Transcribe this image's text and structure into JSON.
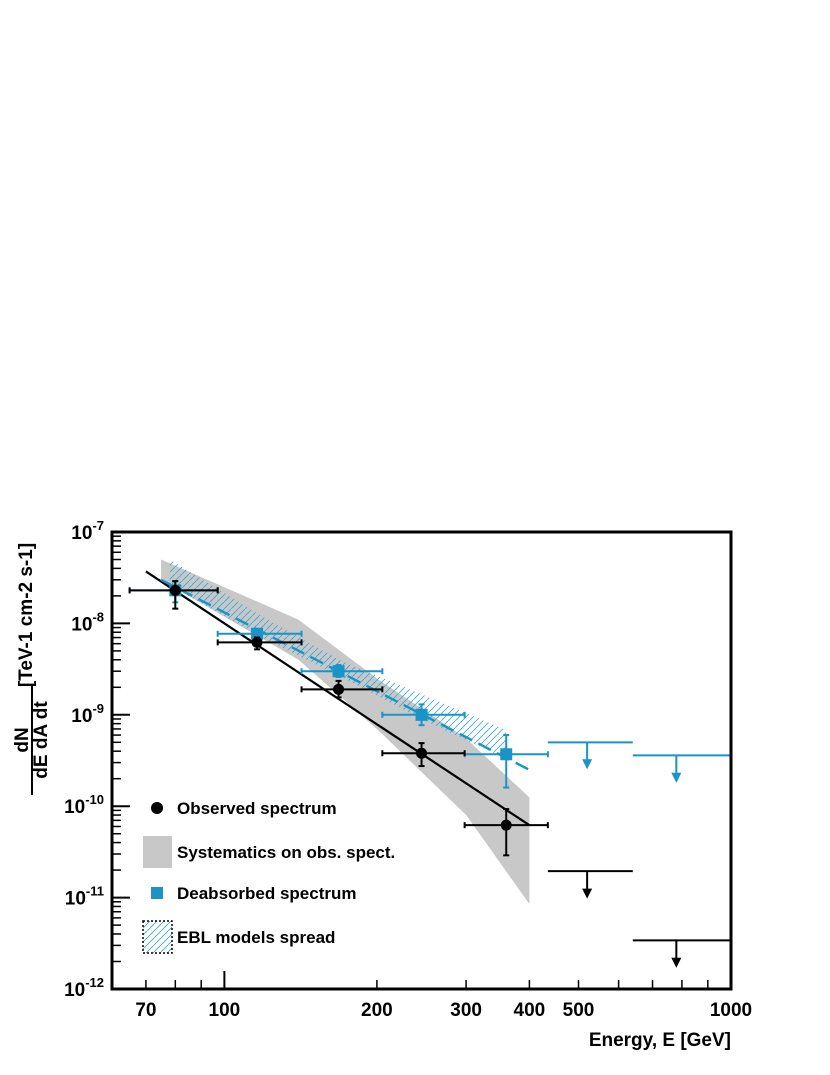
{
  "chart_data": {
    "type": "scatter",
    "title": "",
    "xlabel": "Energy, E [GeV]",
    "ylabel": {
      "numerator": "dN",
      "denominator": "dE dA dt",
      "units": "[TeV-1 cm-2 s-1]"
    },
    "x_scale": "log",
    "y_scale": "log",
    "xlim": [
      60,
      1000
    ],
    "ylim": [
      1e-12,
      1e-07
    ],
    "x_ticks": [
      70,
      100,
      200,
      300,
      400,
      500,
      1000
    ],
    "x_tick_labels": [
      "70",
      "100",
      "200",
      "300",
      "400",
      "500",
      "1000"
    ],
    "y_ticks": [
      {
        "value": 1e-07,
        "base": "10",
        "exp": "-7"
      },
      {
        "value": 1e-08,
        "base": "10",
        "exp": "-8"
      },
      {
        "value": 1e-09,
        "base": "10",
        "exp": "-9"
      },
      {
        "value": 1e-10,
        "base": "10",
        "exp": "-10"
      },
      {
        "value": 1e-11,
        "base": "10",
        "exp": "-11"
      },
      {
        "value": 1e-12,
        "base": "10",
        "exp": "-12"
      }
    ],
    "grid": false,
    "legend_position": "bottom-left",
    "series": [
      {
        "name": "Observed spectrum",
        "color": "#000000",
        "marker": "circle",
        "points": [
          {
            "x": 80,
            "y": 2.3e-08,
            "xlo": 65,
            "xhi": 97,
            "ylo": 1.45e-08,
            "yhi": 2.9e-08
          },
          {
            "x": 116,
            "y": 6.2e-09,
            "xlo": 97,
            "xhi": 142,
            "ylo": 5.2e-09,
            "yhi": 7e-09
          },
          {
            "x": 168,
            "y": 1.9e-09,
            "xlo": 142,
            "xhi": 205,
            "ylo": 1.55e-09,
            "yhi": 2.35e-09
          },
          {
            "x": 245,
            "y": 3.8e-10,
            "xlo": 205,
            "xhi": 298,
            "ylo": 2.75e-10,
            "yhi": 4.9e-10
          },
          {
            "x": 360,
            "y": 6.2e-11,
            "xlo": 298,
            "xhi": 435,
            "ylo": 2.9e-11,
            "yhi": 9.3e-11
          }
        ]
      },
      {
        "name": "Deabsorbed spectrum",
        "color": "#1a93c7",
        "marker": "square",
        "points": [
          {
            "x": 80,
            "y": 2.3e-08,
            "xlo": 65,
            "xhi": 97,
            "ylo": 1.7e-08,
            "yhi": 2.9e-08
          },
          {
            "x": 116,
            "y": 7.7e-09,
            "xlo": 97,
            "xhi": 142,
            "ylo": 6.8e-09,
            "yhi": 8.5e-09
          },
          {
            "x": 168,
            "y": 3e-09,
            "xlo": 142,
            "xhi": 205,
            "ylo": 2.6e-09,
            "yhi": 3.5e-09
          },
          {
            "x": 245,
            "y": 1e-09,
            "xlo": 205,
            "xhi": 298,
            "ylo": 7.7e-10,
            "yhi": 1.3e-09
          },
          {
            "x": 360,
            "y": 3.7e-10,
            "xlo": 298,
            "xhi": 435,
            "ylo": 1.6e-10,
            "yhi": 6e-10
          }
        ]
      }
    ],
    "upper_limits": [
      {
        "series": "Observed spectrum",
        "color": "#000000",
        "x": 520,
        "xlo": 435,
        "xhi": 640,
        "y": 1.95e-11,
        "y_arrow_to": 1e-11
      },
      {
        "series": "Observed spectrum",
        "color": "#000000",
        "x": 780,
        "xlo": 640,
        "xhi": 1000,
        "y": 3.4e-12,
        "y_arrow_to": 1.75e-12
      },
      {
        "series": "Deabsorbed spectrum",
        "color": "#1a93c7",
        "x": 520,
        "xlo": 435,
        "xhi": 640,
        "y": 5e-10,
        "y_arrow_to": 2.6e-10
      },
      {
        "series": "Deabsorbed spectrum",
        "color": "#1a93c7",
        "x": 780,
        "xlo": 640,
        "xhi": 1000,
        "y": 3.6e-10,
        "y_arrow_to": 1.85e-10
      }
    ],
    "fits": [
      {
        "name": "Observed fit",
        "color": "#000000",
        "style": "solid",
        "points": [
          [
            70,
            3.7e-08
          ],
          [
            400,
            6.2e-11
          ]
        ]
      },
      {
        "name": "Deabsorbed fit",
        "color": "#1a93c7",
        "style": "dashed",
        "points": [
          [
            75,
            3e-08
          ],
          [
            400,
            2.5e-10
          ]
        ]
      }
    ],
    "bands": [
      {
        "name": "Systematics on obs. spect.",
        "color": "#c8c8c8",
        "fill": "solid",
        "upper": [
          [
            75,
            5e-08
          ],
          [
            140,
            1.1e-08
          ],
          [
            200,
            2.5e-09
          ],
          [
            300,
            5.5e-10
          ],
          [
            400,
            1.25e-10
          ]
        ],
        "lower": [
          [
            75,
            3e-08
          ],
          [
            140,
            4e-09
          ],
          [
            200,
            7e-10
          ],
          [
            300,
            8e-11
          ],
          [
            400,
            8.5e-12
          ]
        ]
      },
      {
        "name": "EBL models spread",
        "color": "#3fa9d6",
        "fill": "hatched",
        "upper": [
          [
            78,
            5e-08
          ],
          [
            120,
            1.15e-08
          ],
          [
            170,
            3.9e-09
          ],
          [
            250,
            1.6e-09
          ],
          [
            360,
            6.8e-10
          ]
        ],
        "lower": [
          [
            78,
            2.6e-08
          ],
          [
            120,
            6.8e-09
          ],
          [
            170,
            2.6e-09
          ],
          [
            250,
            8.5e-10
          ],
          [
            360,
            3.3e-10
          ]
        ]
      }
    ],
    "legend": [
      {
        "label": "Observed spectrum",
        "symbol": "circle",
        "color": "#000000"
      },
      {
        "label": "Systematics on obs. spect.",
        "symbol": "solid-box",
        "color": "#c8c8c8"
      },
      {
        "label": "Deabsorbed spectrum",
        "symbol": "square",
        "color": "#1a93c7"
      },
      {
        "label": "EBL models spread",
        "symbol": "hatched-box",
        "color": "#3fa9d6"
      }
    ]
  }
}
